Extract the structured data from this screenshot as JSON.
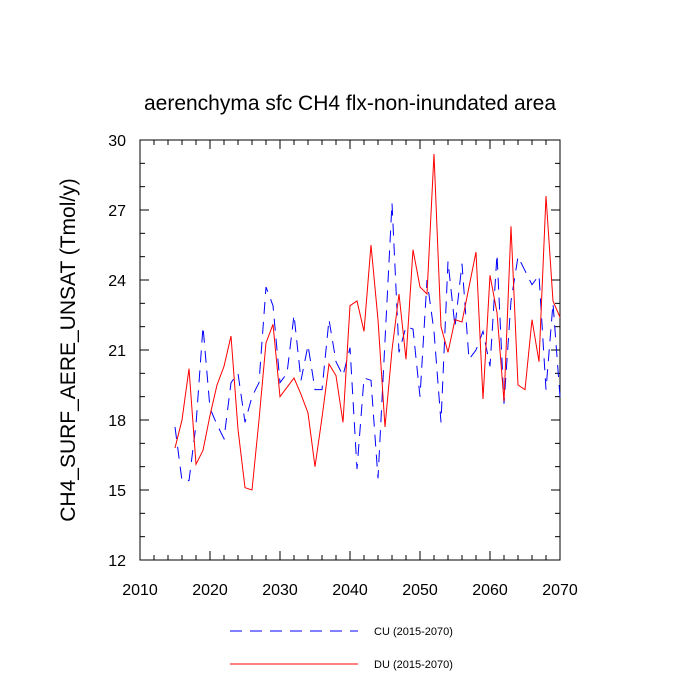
{
  "chart_data": {
    "type": "line",
    "title": "aerenchyma sfc CH4 flx-non-inundated area",
    "xlabel": "",
    "ylabel": "CH4_SURF_AERE_UNSAT  (Tmol/y)",
    "xlim": [
      2010,
      2070
    ],
    "ylim": [
      12,
      30
    ],
    "x_ticks": [
      2010,
      2020,
      2030,
      2040,
      2050,
      2060,
      2070
    ],
    "y_ticks": [
      12,
      15,
      18,
      21,
      24,
      27,
      30
    ],
    "x_minor_step": 2,
    "y_minor_step": 1,
    "grid": false,
    "legend_position": "bottom",
    "x": [
      2015,
      2016,
      2017,
      2018,
      2019,
      2020,
      2021,
      2022,
      2023,
      2024,
      2025,
      2026,
      2027,
      2028,
      2029,
      2030,
      2031,
      2032,
      2033,
      2034,
      2035,
      2036,
      2037,
      2038,
      2039,
      2040,
      2041,
      2042,
      2043,
      2044,
      2045,
      2046,
      2047,
      2048,
      2049,
      2050,
      2051,
      2052,
      2053,
      2054,
      2055,
      2056,
      2057,
      2058,
      2059,
      2060,
      2061,
      2062,
      2063,
      2064,
      2065,
      2066,
      2067,
      2068,
      2069,
      2070
    ],
    "series": [
      {
        "name": "CU (2015-2070)",
        "color": "#0000ff",
        "dash": "dashed",
        "values": [
          17.7,
          15.4,
          15.4,
          17.8,
          22.0,
          18.5,
          17.8,
          17.2,
          19.6,
          20.0,
          17.9,
          19.0,
          19.6,
          23.7,
          22.9,
          19.6,
          20.0,
          22.5,
          19.7,
          21.2,
          19.3,
          19.3,
          22.3,
          20.5,
          19.9,
          21.1,
          15.9,
          19.8,
          19.7,
          15.5,
          21.4,
          27.3,
          20.9,
          22.0,
          21.9,
          19.0,
          24.0,
          21.8,
          17.9,
          24.8,
          22.0,
          24.7,
          20.6,
          21.0,
          21.8,
          20.3,
          25.1,
          18.7,
          23.1,
          25.0,
          24.4,
          23.8,
          24.2,
          19.3,
          23.0,
          19.0
        ]
      },
      {
        "name": "DU (2015-2070)",
        "color": "#ff0000",
        "dash": "solid",
        "values": [
          16.8,
          18.0,
          20.2,
          16.1,
          16.7,
          18.2,
          19.5,
          20.3,
          21.6,
          17.6,
          15.1,
          15.0,
          18.0,
          21.3,
          22.1,
          19.0,
          19.4,
          19.8,
          19.1,
          18.3,
          16.0,
          18.1,
          20.4,
          19.9,
          17.9,
          22.9,
          23.1,
          21.8,
          25.5,
          22.3,
          17.7,
          21.0,
          23.4,
          20.6,
          25.3,
          23.7,
          23.4,
          29.4,
          22.0,
          20.9,
          22.3,
          22.2,
          23.7,
          25.2,
          18.9,
          24.2,
          22.6,
          18.8,
          26.3,
          19.5,
          19.3,
          22.3,
          20.5,
          27.6,
          23.1,
          22.4
        ]
      }
    ]
  }
}
